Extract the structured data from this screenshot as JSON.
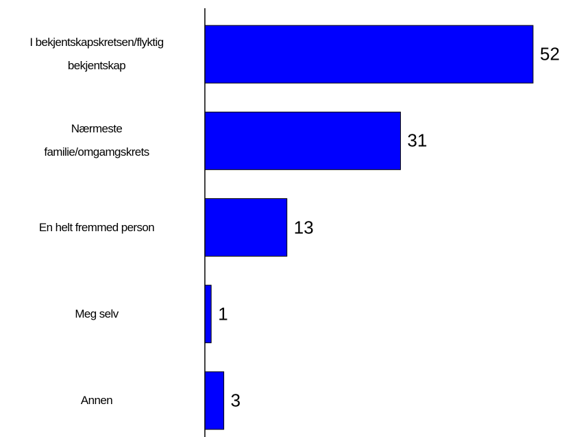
{
  "chart_data": {
    "type": "bar",
    "orientation": "horizontal",
    "categories": [
      "I bekjentskapskretsen/flyktig\nbekjentskap",
      "Nærmeste\nfamilie/omgamgskrets",
      "En helt fremmed person",
      "Meg selv",
      "Annen"
    ],
    "values": [
      52,
      31,
      13,
      1,
      3
    ],
    "color": "#0000ff"
  }
}
